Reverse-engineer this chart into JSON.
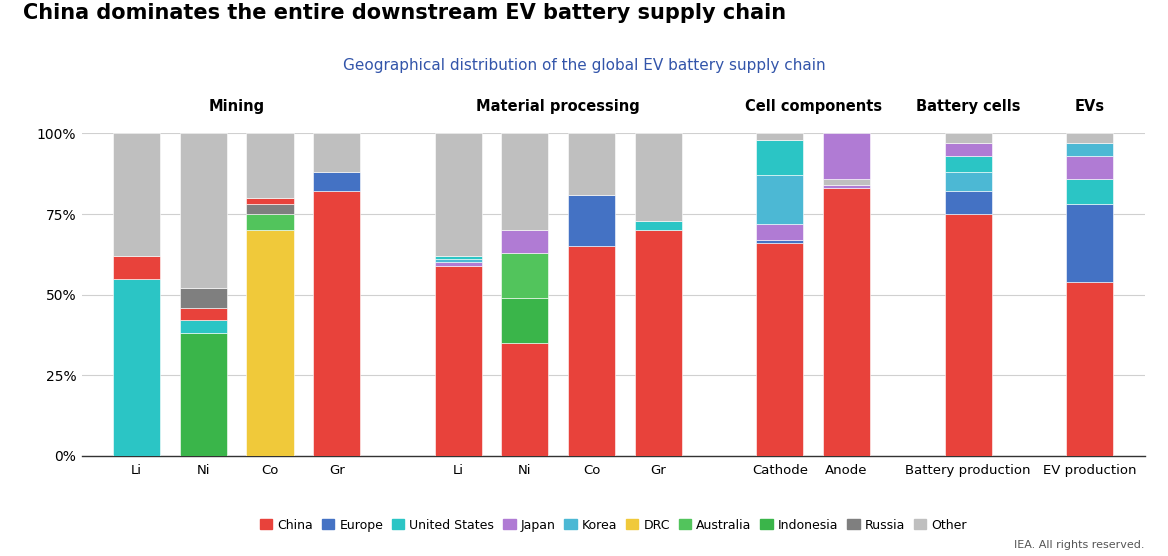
{
  "title": "China dominates the entire downstream EV battery supply chain",
  "subtitle": "Geographical distribution of the global EV battery supply chain",
  "iea_note": "IEA. All rights reserved.",
  "colors": {
    "China": "#e8423b",
    "Europe": "#4472c4",
    "United States": "#2bc5c5",
    "Japan": "#b07bd4",
    "Korea": "#4cb8d4",
    "DRC": "#f0c93a",
    "Australia": "#52c45c",
    "Indonesia": "#3ab54a",
    "Russia": "#7f7f7f",
    "Other": "#bfbfbf"
  },
  "legend_order": [
    "China",
    "Europe",
    "United States",
    "Japan",
    "Korea",
    "DRC",
    "Australia",
    "Indonesia",
    "Russia",
    "Other"
  ],
  "groups": [
    {
      "name": "Mining",
      "bars": [
        "Li",
        "Ni",
        "Co",
        "Gr"
      ]
    },
    {
      "name": "Material processing",
      "bars": [
        "Li",
        "Ni",
        "Co",
        "Gr"
      ]
    },
    {
      "name": "Cell components",
      "bars": [
        "Cathode",
        "Anode"
      ]
    },
    {
      "name": "Battery cells",
      "bars": [
        "Battery production"
      ]
    },
    {
      "name": "EVs",
      "bars": [
        "EV production"
      ]
    }
  ],
  "bar_segments": [
    [
      [
        "#2bc5c5",
        0.55
      ],
      [
        "#e8423b",
        0.07
      ],
      [
        "#bfbfbf",
        0.38
      ]
    ],
    [
      [
        "#3ab54a",
        0.38
      ],
      [
        "#2bc5c5",
        0.04
      ],
      [
        "#e8423b",
        0.04
      ],
      [
        "#7f7f7f",
        0.06
      ],
      [
        "#bfbfbf",
        0.48
      ]
    ],
    [
      [
        "#f0c93a",
        0.7
      ],
      [
        "#52c45c",
        0.05
      ],
      [
        "#7f7f7f",
        0.03
      ],
      [
        "#e8423b",
        0.02
      ],
      [
        "#bfbfbf",
        0.2
      ]
    ],
    [
      [
        "#e8423b",
        0.82
      ],
      [
        "#4472c4",
        0.06
      ],
      [
        "#bfbfbf",
        0.12
      ]
    ],
    [
      [
        "#e8423b",
        0.59
      ],
      [
        "#b07bd4",
        0.01
      ],
      [
        "#4cb8d4",
        0.01
      ],
      [
        "#2bc5c5",
        0.01
      ],
      [
        "#bfbfbf",
        0.38
      ]
    ],
    [
      [
        "#e8423b",
        0.35
      ],
      [
        "#3ab54a",
        0.14
      ],
      [
        "#52c45c",
        0.14
      ],
      [
        "#b07bd4",
        0.07
      ],
      [
        "#bfbfbf",
        0.3
      ]
    ],
    [
      [
        "#e8423b",
        0.65
      ],
      [
        "#4472c4",
        0.16
      ],
      [
        "#bfbfbf",
        0.19
      ]
    ],
    [
      [
        "#e8423b",
        0.7
      ],
      [
        "#2bc5c5",
        0.03
      ],
      [
        "#bfbfbf",
        0.27
      ]
    ],
    [
      [
        "#e8423b",
        0.66
      ],
      [
        "#4472c4",
        0.01
      ],
      [
        "#b07bd4",
        0.05
      ],
      [
        "#4cb8d4",
        0.15
      ],
      [
        "#2bc5c5",
        0.11
      ],
      [
        "#bfbfbf",
        0.02
      ]
    ],
    [
      [
        "#e8423b",
        0.83
      ],
      [
        "#b07bd4",
        0.01
      ],
      [
        "#bfbfbf",
        0.02
      ],
      [
        "#b07bd4",
        0.14
      ]
    ],
    [
      [
        "#e8423b",
        0.75
      ],
      [
        "#4472c4",
        0.07
      ],
      [
        "#4cb8d4",
        0.06
      ],
      [
        "#2bc5c5",
        0.05
      ],
      [
        "#b07bd4",
        0.04
      ],
      [
        "#bfbfbf",
        0.03
      ]
    ],
    [
      [
        "#e8423b",
        0.54
      ],
      [
        "#4472c4",
        0.24
      ],
      [
        "#2bc5c5",
        0.08
      ],
      [
        "#b07bd4",
        0.07
      ],
      [
        "#4cb8d4",
        0.04
      ],
      [
        "#bfbfbf",
        0.03
      ]
    ]
  ],
  "bar_xlabels": [
    "Li",
    "Ni",
    "Co",
    "Gr",
    "Li",
    "Ni",
    "Co",
    "Gr",
    "Cathode",
    "Anode",
    "Battery production",
    "EV production"
  ],
  "bar_width": 0.6,
  "title_fontsize": 15,
  "subtitle_fontsize": 11,
  "axis_label_fontsize": 10,
  "legend_fontsize": 9
}
